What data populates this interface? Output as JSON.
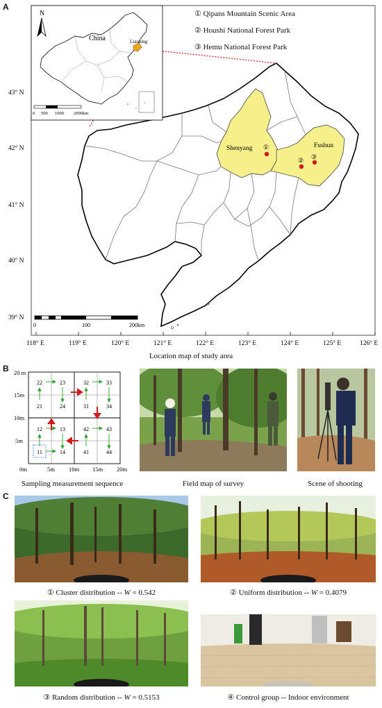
{
  "panels": {
    "a": "A",
    "b": "B",
    "c": "C"
  },
  "map": {
    "legend": [
      "① Qipans Mountain Scenic Area",
      "② Houshi National Forest Park",
      "③ Hemu National Forest Park"
    ],
    "inset": {
      "country": "China",
      "province": "Liaoning",
      "north": "N",
      "scale": [
        "0",
        "500",
        "1000",
        "2000km"
      ]
    },
    "cities": [
      "Shenyang",
      "Fushun"
    ],
    "sites": [
      "①",
      "②",
      "③"
    ],
    "lat_labels": [
      "43° N",
      "42° N",
      "41° N",
      "40° N",
      "39° N"
    ],
    "lon_labels": [
      "118° E",
      "119° E",
      "120° E",
      "121° E",
      "122° E",
      "123° E",
      "124° E",
      "125° E",
      "126° E"
    ],
    "scale": [
      "0",
      "100",
      "200km"
    ],
    "caption": "Location map of study area",
    "colors": {
      "highlight": "#f7f08a",
      "site": "#d21a1a",
      "leader": "#d21a1a"
    }
  },
  "sampling": {
    "y_labels": [
      "20 m",
      "15m",
      "10m",
      "5m",
      "0m"
    ],
    "x_labels": [
      "0m",
      "5m",
      "10m",
      "15m",
      "20m"
    ],
    "cells": [
      "22",
      "23",
      "32",
      "33",
      "21",
      "24",
      "31",
      "34",
      "12",
      "13",
      "42",
      "43",
      "11",
      "14",
      "41",
      "44"
    ],
    "caption": "Sampling measurement sequence"
  },
  "photos_b": {
    "survey_caption": "Field map of survey",
    "shoot_caption": "Scene of shooting"
  },
  "panoramas": [
    {
      "prefix": "① Cluster distribution -- ",
      "w": "W",
      "value": " = 0.542"
    },
    {
      "prefix": "② Uniform distribution -- ",
      "w": "W",
      "value": " = 0.4079"
    },
    {
      "prefix": "③ Random distribution -- ",
      "w": "W",
      "value": " = 0.5153"
    },
    {
      "prefix": "④ Control group -- Indoor environment",
      "w": "",
      "value": ""
    }
  ]
}
